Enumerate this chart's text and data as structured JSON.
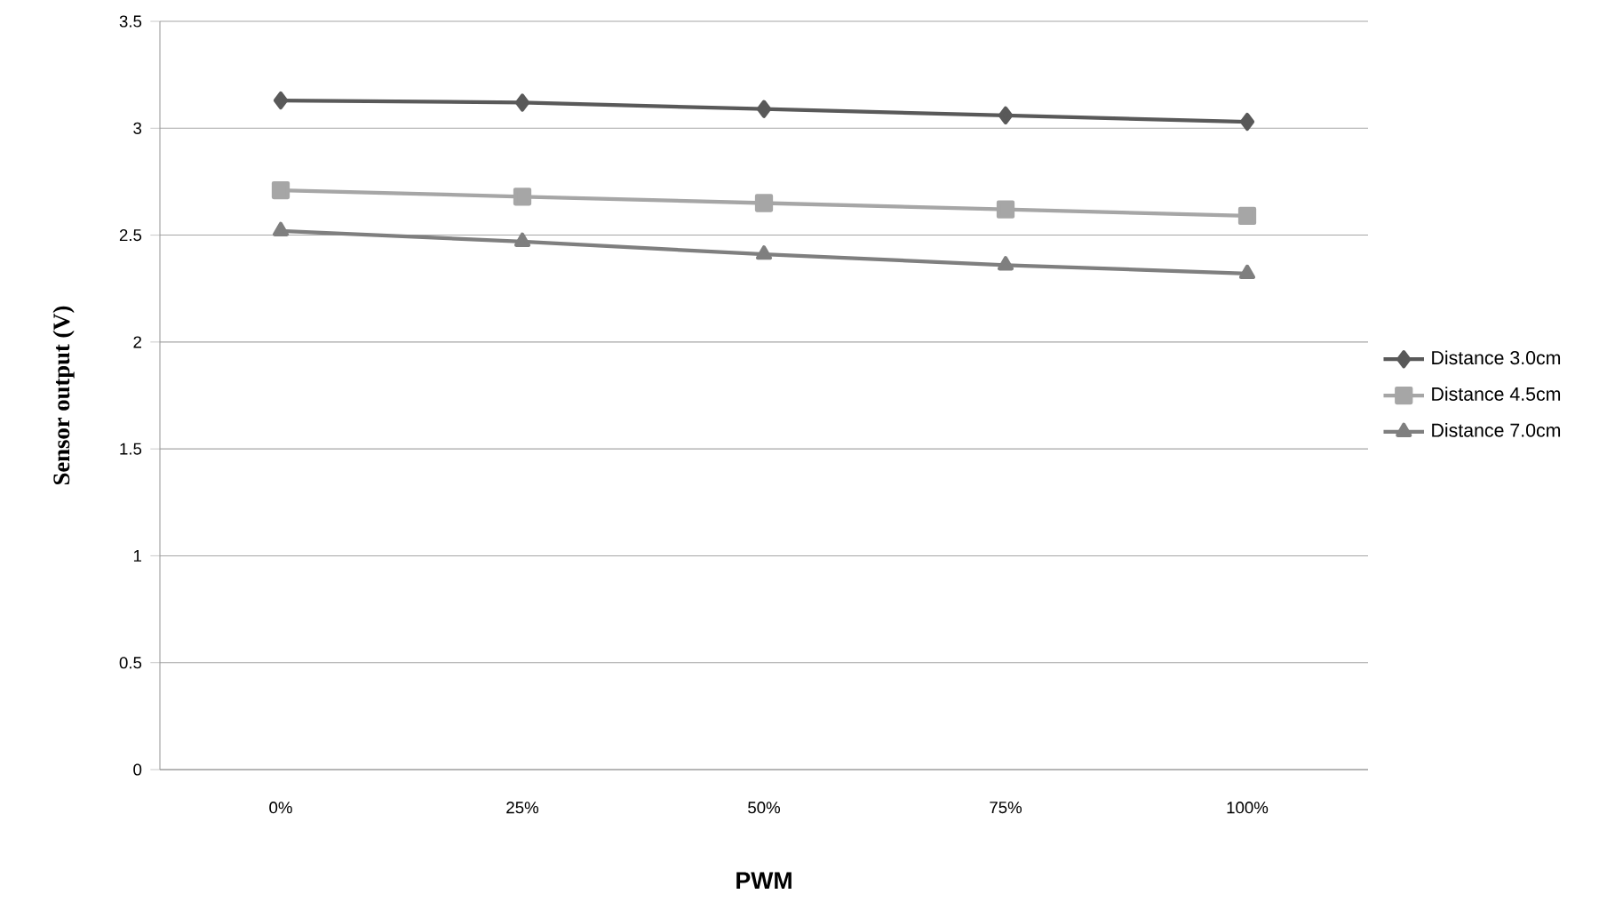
{
  "chart_data": {
    "type": "line",
    "xlabel": "PWM",
    "ylabel": "Sensor output (V)",
    "categories": [
      "0%",
      "25%",
      "50%",
      "75%",
      "100%"
    ],
    "series": [
      {
        "name": "Distance 3.0cm",
        "color": "#595959",
        "marker": "diamond",
        "values": [
          3.13,
          3.12,
          3.09,
          3.06,
          3.03
        ]
      },
      {
        "name": "Distance 4.5cm",
        "color": "#a6a6a6",
        "marker": "square",
        "values": [
          2.71,
          2.68,
          2.65,
          2.62,
          2.59
        ]
      },
      {
        "name": "Distance 7.0cm",
        "color": "#7f7f7f",
        "marker": "triangle",
        "values": [
          2.52,
          2.47,
          2.41,
          2.36,
          2.32
        ]
      }
    ],
    "ylim": [
      0,
      3.5
    ],
    "yticks": [
      0,
      0.5,
      1,
      1.5,
      2,
      2.5,
      3,
      3.5
    ],
    "grid": "y",
    "legend": "right",
    "line_style": "solid"
  }
}
